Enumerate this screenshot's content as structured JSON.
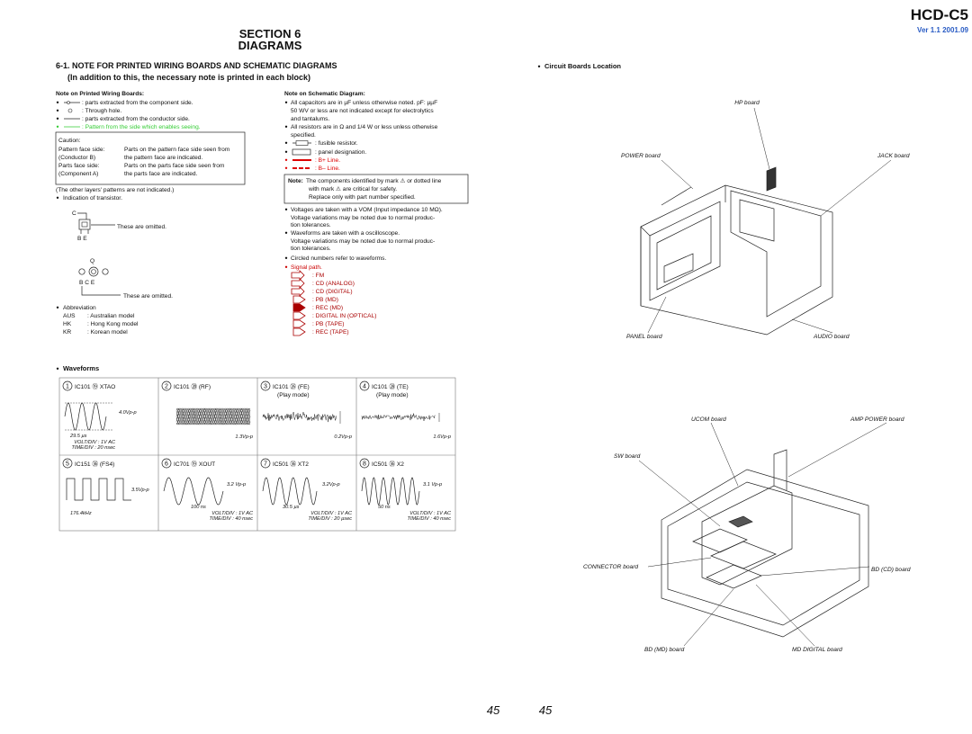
{
  "header": {
    "section": "SECTION 6",
    "title": "DIAGRAMS",
    "model": "HCD-C5",
    "version": "Ver 1.1  2001.09"
  },
  "heading": {
    "title": "6-1. NOTE FOR PRINTED WIRING BOARDS AND SCHEMATIC DIAGRAMS",
    "subtitle": "(In addition to this, the necessary note is printed in each block)"
  },
  "pwb": {
    "title": "Note on Printed Wiring Boards:",
    "items": [
      ": parts extracted from the component side.",
      ": Through hole.",
      ": parts extracted from the conductor side.",
      ": Pattern from the side which enables seeing."
    ],
    "caution": {
      "title": "Caution:",
      "rows": [
        [
          "Pattern face side:",
          "Parts on the pattern face side seen from"
        ],
        [
          "(Conductor B)",
          "the pattern face are indicated."
        ],
        [
          "Parts face side:",
          "Parts on the parts face side seen from"
        ],
        [
          "(Component A)",
          "the parts face are indicated."
        ]
      ]
    },
    "other_layers": "(The other layers' patterns are not indicated.)",
    "transistor": {
      "title": "Indication of transistor.",
      "a": {
        "c": "C",
        "be": "B  E",
        "note": "These are omitted."
      },
      "b": {
        "q": "Q",
        "bce": "B  C  E",
        "note": "These are omitted."
      }
    },
    "abbreviation": {
      "title": "Abbreviation",
      "rows": [
        [
          "AUS",
          ": Australian model"
        ],
        [
          "HK",
          ": Hong Kong model"
        ],
        [
          "KR",
          ": Korean model"
        ]
      ]
    }
  },
  "schematic": {
    "title": "Note on Schematic Diagram:",
    "lines": [
      "All capacitors are in µF unless otherwise noted. pF: µµF",
      "50 WV or less are not indicated except for electrolytics",
      "and tantalums.",
      "All resistors are in Ω and 1/4 W or less unless otherwise",
      "specified."
    ],
    "symbols": [
      ": fusible resistor.",
      ": panel designation.",
      ": B+ Line.",
      ": B– Line."
    ],
    "note": {
      "label": "Note:",
      "lines": [
        "The components identified by mark ⚠ or dotted line",
        "with mark ⚠ are critical for safety.",
        "Replace only with part number specified."
      ]
    },
    "lines2": [
      "Voltages are taken with a VOM (Input impedance 10 MΩ).",
      "Voltage variations may be noted due to normal produc-",
      "tion tolerances.",
      "Waveforms are taken with a oscilloscope.",
      "Voltage variations may be noted due to normal produc-",
      "tion tolerances.",
      "Circled numbers refer to waveforms."
    ],
    "signal": {
      "title": "Signal path.",
      "items": [
        ": FM",
        ": CD (ANALOG)",
        ": CD (DIGITAL)",
        ": PB (MD)",
        ": REC (MD)",
        ": DIGITAL IN (OPTICAL)",
        ": PB (TAPE)",
        ": REC (TAPE)"
      ]
    }
  },
  "boards": {
    "title": "Circuit Boards Location",
    "labels": [
      "HP board",
      "POWER board",
      "JACK board",
      "PANEL board",
      "AUDIO board",
      "UCOM board",
      "AMP POWER board",
      "SW board",
      "CONNECTOR board",
      "BD (CD) board",
      "BD (MD) board",
      "MD DIGITAL board"
    ]
  },
  "waveforms": {
    "title": "Waveforms",
    "panels": [
      {
        "number": "1",
        "label": "IC101 ⑲ XTAO",
        "notes": [
          "4.0Vp-p",
          "29.5 µs",
          "VOLT/DIV : 1V AC",
          "TIME/DIV : 20 nsec"
        ]
      },
      {
        "number": "2",
        "label": "IC101 ⑳ (RF)",
        "notes": [
          "1.3Vp-p"
        ]
      },
      {
        "number": "3",
        "label": "IC101 ㉖ (FE)",
        "mode": "(Play mode)",
        "notes": [
          "0.2Vp-p"
        ]
      },
      {
        "number": "4",
        "label": "IC101 ㉘ (TE)",
        "mode": "(Play mode)",
        "notes": [
          "1.6Vp-p"
        ]
      },
      {
        "number": "5",
        "label": "IC151 ㊱ (FS4)",
        "notes": [
          "3.5Vp-p",
          "176.4kHz"
        ]
      },
      {
        "number": "6",
        "label": "IC701 ⑲ XOUT",
        "notes": [
          "3.2 Vp-p",
          "100 ns",
          "VOLT/DIV : 1V AC",
          "TIME/DIV : 40 nsec"
        ]
      },
      {
        "number": "7",
        "label": "IC501 ㊱ XT2",
        "notes": [
          "3.2Vp-p",
          "30.5 µs",
          "VOLT/DIV : 1V AC",
          "TIME/DIV : 20 µsec"
        ]
      },
      {
        "number": "8",
        "label": "IC501 ㊱ X2",
        "notes": [
          "3.1 Vp-p",
          "50 ns",
          "VOLT/DIV : 1V AC",
          "TIME/DIV : 40 nsec"
        ]
      }
    ]
  },
  "page_numbers": [
    "45",
    "45"
  ]
}
